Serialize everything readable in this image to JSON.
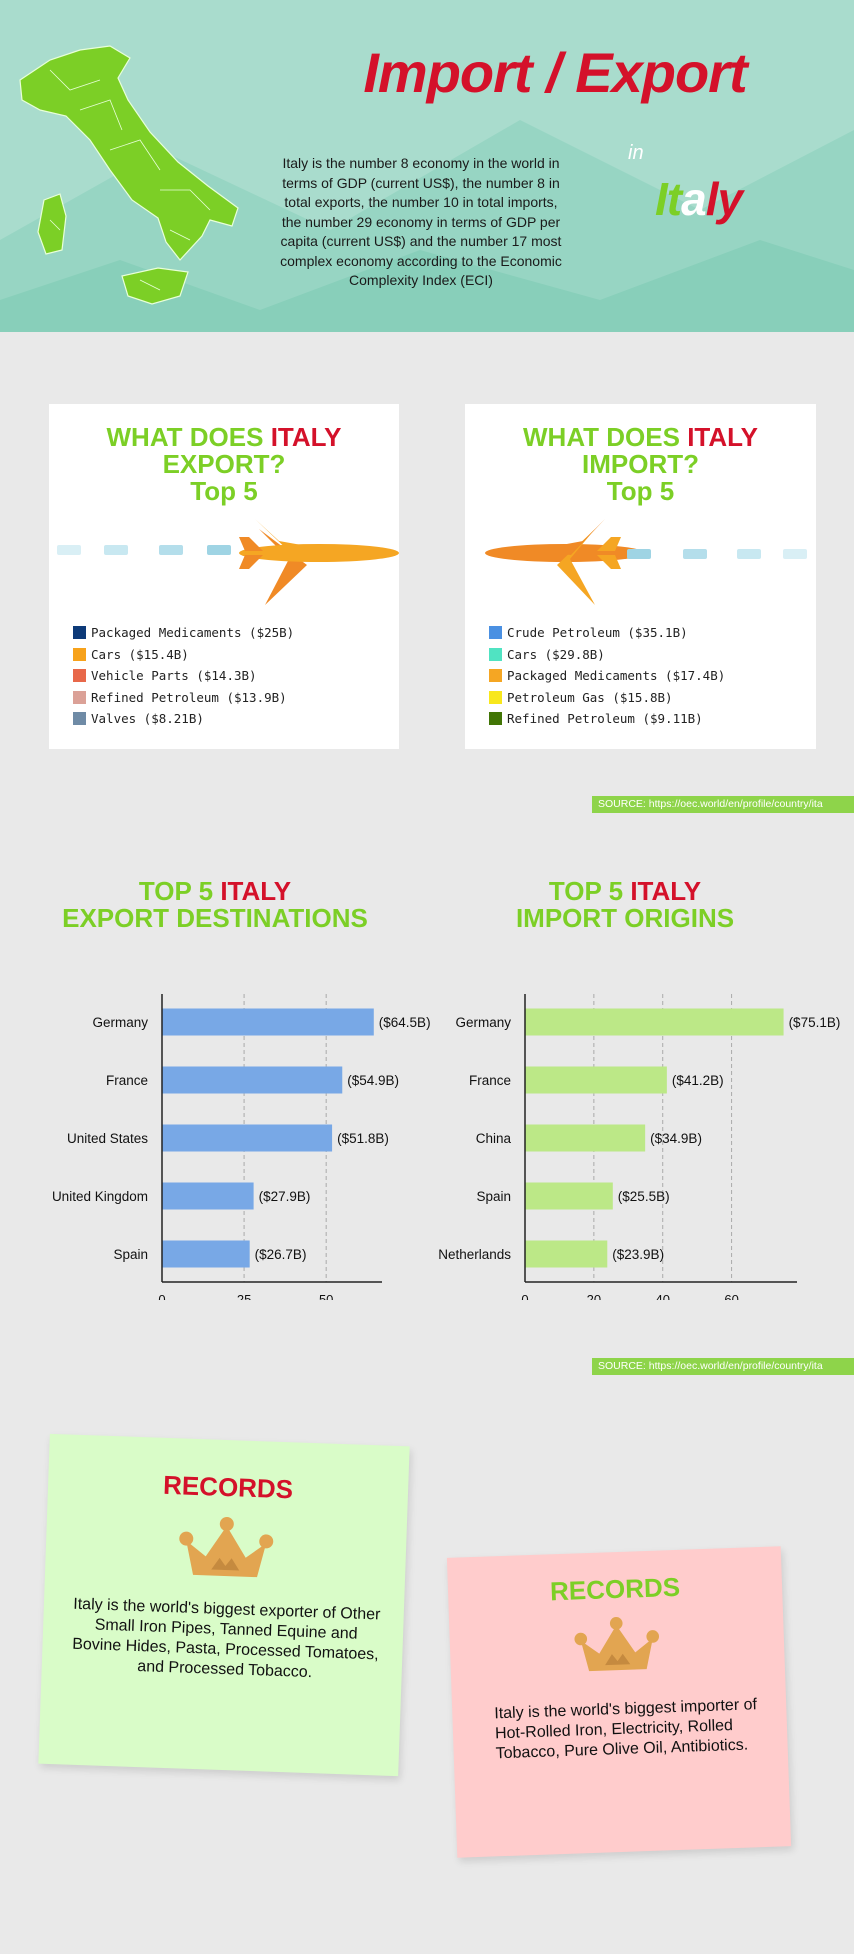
{
  "header": {
    "title": "Import / Export",
    "in_word": "in",
    "country_parts": [
      "It",
      "a",
      "ly"
    ],
    "intro": "Italy is the number 8 economy in the world in terms of GDP (current US$), the number 8 in total exports, the number 10 in total imports, the number 29 economy in terms of GDP per capita (current US$) and the number 17 most complex economy according to the Economic Complexity Index (ECI)"
  },
  "export_card": {
    "title_line1": "WHAT DOES",
    "title_country": "ITALY",
    "title_line2": "EXPORT?",
    "title_line3": "Top 5",
    "items": [
      {
        "label": "Packaged Medicaments ($25B)",
        "color": "#0d3a78"
      },
      {
        "label": "Cars ($15.4B)",
        "color": "#f7a21b"
      },
      {
        "label": "Vehicle Parts ($14.3B)",
        "color": "#e8684a"
      },
      {
        "label": "Refined Petroleum ($13.9B)",
        "color": "#dba197"
      },
      {
        "label": "Valves ($8.21B)",
        "color": "#6f8ba6"
      }
    ]
  },
  "import_card": {
    "title_line1": "WHAT DOES",
    "title_country": "ITALY",
    "title_line2": "IMPORT?",
    "title_line3": "Top 5",
    "items": [
      {
        "label": "Crude Petroleum ($35.1B)",
        "color": "#4a90e2"
      },
      {
        "label": "Cars ($29.8B)",
        "color": "#50e3c2"
      },
      {
        "label": "Packaged Medicaments ($17.4B)",
        "color": "#f5a623"
      },
      {
        "label": "Petroleum Gas ($15.8B)",
        "color": "#f8e71c"
      },
      {
        "label": "Refined Petroleum ($9.11B)",
        "color": "#417505"
      }
    ]
  },
  "sources": {
    "source_1": "SOURCE: https://oec.world/en/profile/country/ita",
    "source_2": "SOURCE: https://oec.world/en/profile/country/ita"
  },
  "export_dest_title": {
    "part1": "TOP 5",
    "country": "ITALY",
    "line2": "EXPORT DESTINATIONS"
  },
  "import_orig_title": {
    "part1": "TOP 5",
    "country": "ITALY",
    "line2": "IMPORT ORIGINS"
  },
  "chart_data": [
    {
      "type": "bar",
      "orientation": "horizontal",
      "categories": [
        "Germany",
        "France",
        "United States",
        "United Kingdom",
        "Spain"
      ],
      "values": [
        64.5,
        54.9,
        51.8,
        27.9,
        26.7
      ],
      "data_labels": [
        "($64.5B)",
        "($54.9B)",
        "($51.8B)",
        "($27.9B)",
        "($26.7B)"
      ],
      "xticks": [
        0,
        25,
        50
      ],
      "xlim": [
        0,
        67
      ],
      "grid": true,
      "bar_color": "#78a8e6"
    },
    {
      "type": "bar",
      "orientation": "horizontal",
      "categories": [
        "Germany",
        "France",
        "China",
        "Spain",
        "Netherlands"
      ],
      "values": [
        75.1,
        41.2,
        34.9,
        25.5,
        23.9
      ],
      "data_labels": [
        "($75.1B)",
        "($41.2B)",
        "($34.9B)",
        "($25.5B)",
        "($23.9B)"
      ],
      "xticks": [
        0,
        20,
        40,
        60
      ],
      "xlim": [
        0,
        79
      ],
      "grid": true,
      "bar_color": "#bce887"
    }
  ],
  "records_export": {
    "title": "RECORDS",
    "text": "Italy is the world's biggest exporter of Other Small Iron Pipes, Tanned Equine and Bovine Hides, Pasta, Processed Tomatoes, and Processed Tobacco.",
    "bg": "#d9fcc8",
    "title_color": "#d4112a"
  },
  "records_import": {
    "title": "RECORDS",
    "text": "Italy is the world's biggest importer of Hot-Rolled Iron, Electricity, Rolled Tobacco, Pure Olive Oil, Antibiotics.",
    "bg": "#ffcccc",
    "title_color": "#7ccf26"
  }
}
